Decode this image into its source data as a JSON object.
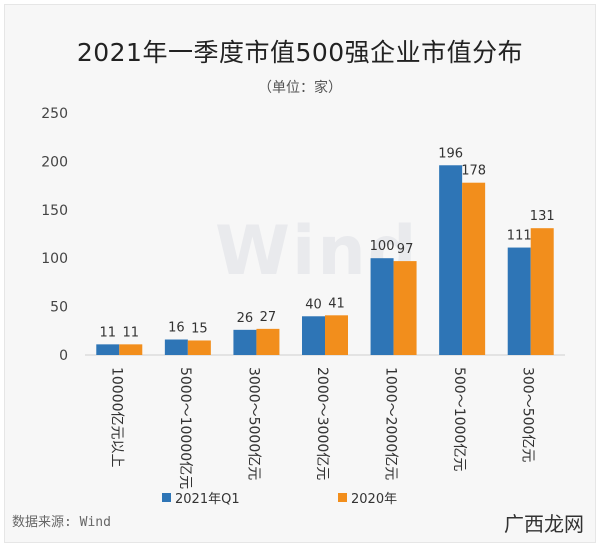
{
  "chart_data": {
    "type": "bar",
    "title": "2021年一季度市值500强企业市值分布",
    "subtitle": "（单位：家）",
    "categories": [
      "10000亿元以上",
      "5000～10000亿元",
      "3000～5000亿元",
      "2000～3000亿元",
      "1000～2000亿元",
      "500～1000亿元",
      "300～500亿元"
    ],
    "series": [
      {
        "name": "2021年Q1",
        "color": "#2e75b6",
        "values": [
          11,
          16,
          26,
          40,
          100,
          196,
          111
        ]
      },
      {
        "name": "2020年",
        "color": "#f28e1c",
        "values": [
          11,
          15,
          27,
          41,
          97,
          178,
          131
        ]
      }
    ],
    "ylim": [
      0,
      250
    ],
    "yticks": [
      0,
      50,
      100,
      150,
      200,
      250
    ],
    "grid": false,
    "legend": "bottom"
  },
  "watermark": "Wind",
  "source": "数据来源: Wind",
  "brand": "广西龙网"
}
